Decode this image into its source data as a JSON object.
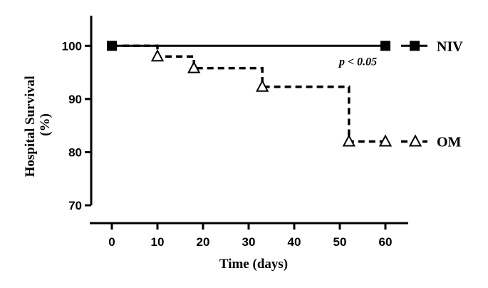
{
  "chart_data": {
    "type": "line",
    "title": "",
    "xlabel": "Time (days)",
    "ylabel_line1": "Hospital Survival",
    "ylabel_line2": "(%)",
    "xlim": [
      0,
      65
    ],
    "ylim": [
      70,
      105
    ],
    "xticks": [
      0,
      10,
      20,
      30,
      40,
      50,
      60
    ],
    "xtick_labels": [
      "0",
      "10",
      "20",
      "30",
      "40",
      "50",
      "60"
    ],
    "yticks": [
      70,
      80,
      90,
      100
    ],
    "ytick_labels": [
      "70",
      "80",
      "90",
      "100"
    ],
    "grid": false,
    "legend_placement": "right",
    "series": [
      {
        "name": "NIV",
        "style": "solid",
        "marker": "filled-square",
        "color": "#000000",
        "x": [
          0,
          60
        ],
        "y": [
          100,
          100
        ],
        "marker_x": [
          0,
          60
        ],
        "marker_y": [
          100,
          100
        ]
      },
      {
        "name": "OM",
        "style": "dashed",
        "marker": "open-triangle",
        "color": "#000000",
        "x": [
          0,
          10,
          10,
          18,
          18,
          33,
          33,
          52,
          52,
          60
        ],
        "y": [
          100,
          100,
          98,
          98,
          95.8,
          95.8,
          92.3,
          92.3,
          82,
          82
        ],
        "marker_x": [
          10,
          18,
          33,
          52,
          60
        ],
        "marker_y": [
          98,
          95.8,
          92.3,
          82,
          82
        ]
      }
    ],
    "annotations": [
      {
        "text": "p < 0.05",
        "x": 54,
        "y": 97
      }
    ]
  }
}
